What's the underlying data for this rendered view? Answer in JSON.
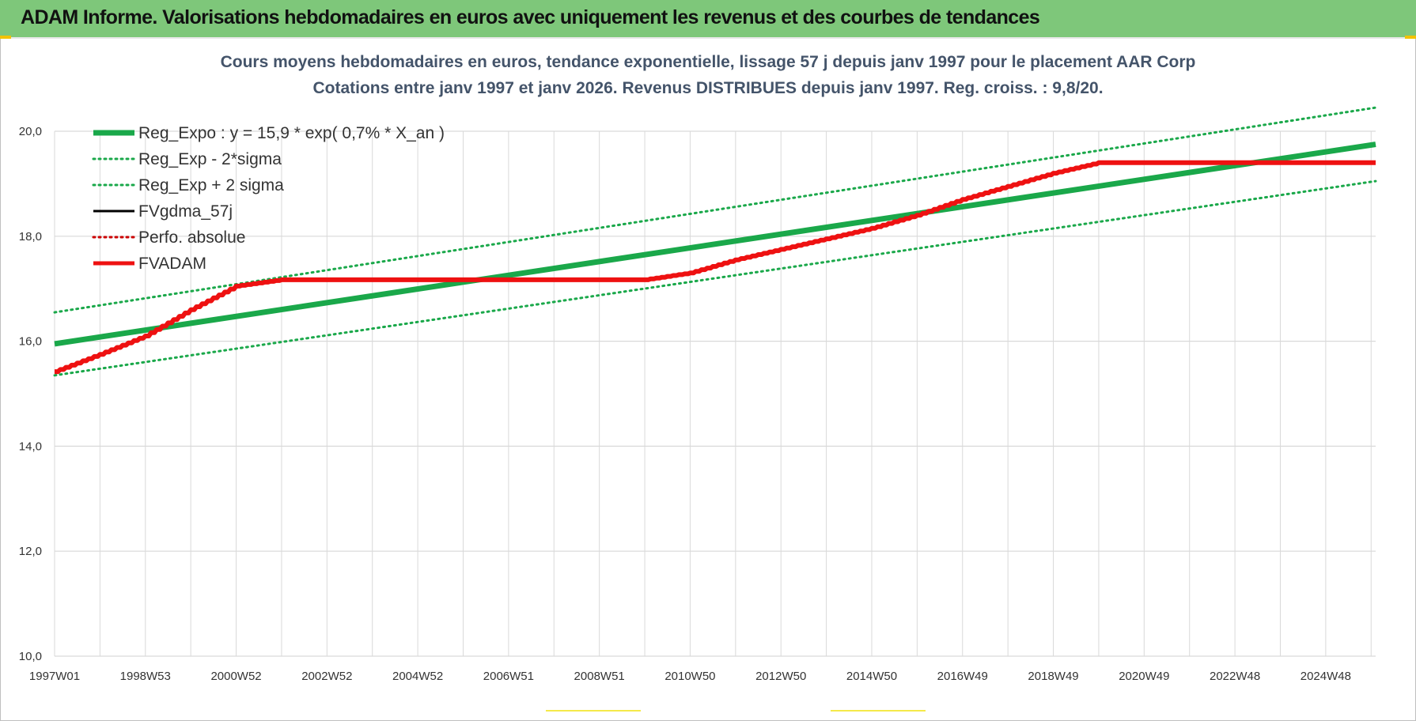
{
  "header": {
    "title": "ADAM Informe. Valorisations hebdomadaires en euros avec uniquement les revenus et des courbes de tendances"
  },
  "colors": {
    "header_bg": "#7ec77a",
    "trend": "#1aa84a",
    "band": "#1aa84a",
    "fvadam": "#ee1111",
    "grid": "#d9d9d9",
    "title": "#44546a"
  },
  "chart_data": {
    "type": "line",
    "title": "Cours moyens hebdomadaires en euros, tendance exponentielle, lissage 57 j depuis janv 1997 pour le placement AAR Corp",
    "subtitle": "Cotations entre janv 1997 et janv 2026. Revenus DISTRIBUES depuis janv 1997. Reg. croiss. : 9,8/20.",
    "x_tick_labels": [
      "1997W01",
      "1998W53",
      "2000W52",
      "2002W52",
      "2004W52",
      "2006W51",
      "2008W51",
      "2010W50",
      "2012W50",
      "2014W50",
      "2016W49",
      "2018W49",
      "2020W49",
      "2022W48",
      "2024W48"
    ],
    "x_range": [
      1997.0,
      2026.1
    ],
    "ylim": [
      10.0,
      20.0
    ],
    "y_ticks": [
      "10,0",
      "12,0",
      "14,0",
      "16,0",
      "18,0",
      "20,0"
    ],
    "grid": true,
    "legend_position": "top-left",
    "series": [
      {
        "name": "Reg_Expo : y = 15,9 * exp( 0,7% *  X_an )",
        "style": "solid-thick",
        "color": "#1aa84a",
        "x": [
          1997.0,
          2026.1
        ],
        "y": [
          15.95,
          19.75
        ]
      },
      {
        "name": "Reg_Exp - 2*sigma",
        "style": "dotted",
        "color": "#1aa84a",
        "x": [
          1997.0,
          2026.1
        ],
        "y": [
          15.35,
          19.05
        ]
      },
      {
        "name": "Reg_Exp + 2 sigma",
        "style": "dotted",
        "color": "#1aa84a",
        "x": [
          1997.0,
          2026.1
        ],
        "y": [
          16.55,
          20.45
        ]
      },
      {
        "name": "FVgdma_57j",
        "style": "solid",
        "color": "#000000",
        "x": [],
        "y": []
      },
      {
        "name": "Perfo. absolue",
        "style": "dotted",
        "color": "#cc0000",
        "x": [],
        "y": []
      },
      {
        "name": "FVADAM",
        "style": "solid-thick-stepped",
        "color": "#ee1111",
        "x": [
          1997.0,
          1998.0,
          1999.0,
          2000.0,
          2001.0,
          2002.0,
          2010.0,
          2011.0,
          2012.0,
          2013.0,
          2014.0,
          2015.0,
          2016.0,
          2017.0,
          2018.0,
          2019.0,
          2020.0,
          2026.1
        ],
        "y": [
          15.42,
          15.75,
          16.1,
          16.6,
          17.05,
          17.17,
          17.17,
          17.3,
          17.55,
          17.75,
          17.95,
          18.15,
          18.4,
          18.7,
          18.95,
          19.2,
          19.4,
          19.4
        ]
      }
    ]
  }
}
